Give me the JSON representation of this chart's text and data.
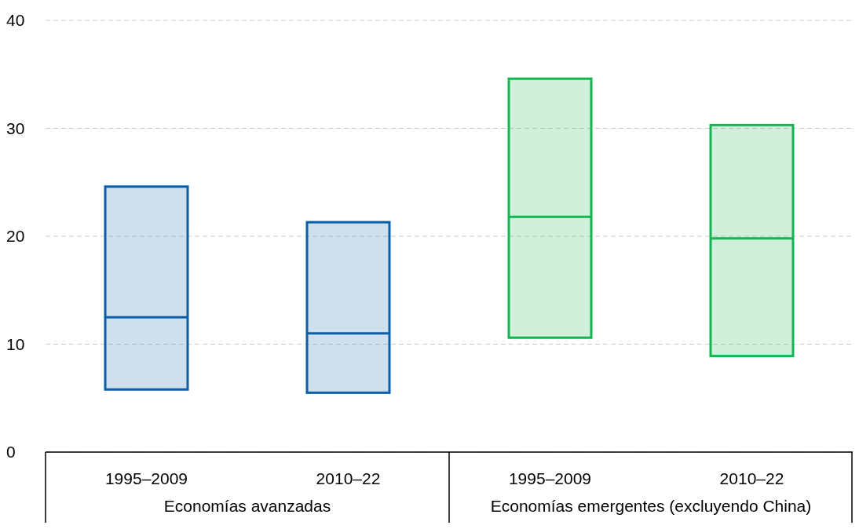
{
  "chart_data": {
    "type": "box",
    "categories": [
      "1995–2009",
      "2010–22",
      "1995–2009",
      "2010–22"
    ],
    "boxes": [
      {
        "low": 5.8,
        "q1": 5.8,
        "median": 12.5,
        "q3": 24.6,
        "high": 24.6
      },
      {
        "low": 5.5,
        "q1": 5.5,
        "median": 11.0,
        "q3": 21.3,
        "high": 21.3
      },
      {
        "low": 10.6,
        "q1": 10.6,
        "median": 21.8,
        "q3": 34.6,
        "high": 34.6
      },
      {
        "low": 8.9,
        "q1": 8.9,
        "median": 19.8,
        "q3": 30.3,
        "high": 30.3
      }
    ],
    "colors": [
      "#0b5fa8",
      "#0b5fa8",
      "#16b352",
      "#16b352"
    ],
    "ylim": [
      0,
      40
    ],
    "yticks": [
      0,
      10,
      20,
      30,
      40
    ],
    "grid": "y",
    "annotations": [
      "Economías avanzadas",
      "Economías emergentes (excluyendo China)"
    ]
  }
}
